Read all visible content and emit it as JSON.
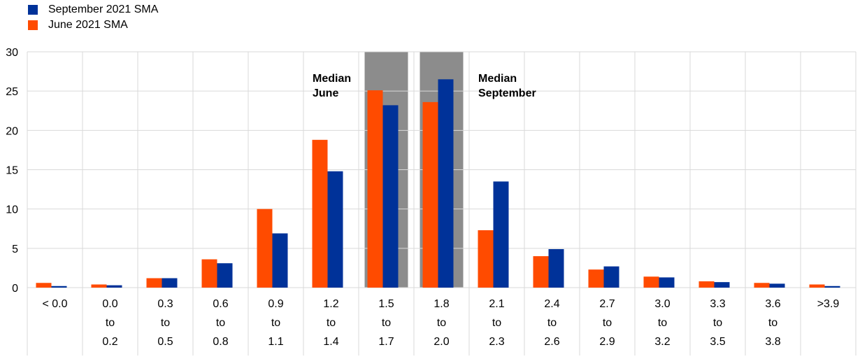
{
  "colors": {
    "september": "#003299",
    "june": "#ff4b00",
    "median_band": "#8c8c8c",
    "grid": "#d9d9d9"
  },
  "chart_data": {
    "type": "bar",
    "categories": [
      [
        "< 0.0"
      ],
      [
        "0.0",
        "to",
        "0.2"
      ],
      [
        "0.3",
        "to",
        "0.5"
      ],
      [
        "0.6",
        "to",
        "0.8"
      ],
      [
        "0.9",
        "to",
        "1.1"
      ],
      [
        "1.2",
        "to",
        "1.4"
      ],
      [
        "1.5",
        "to",
        "1.7"
      ],
      [
        "1.8",
        "to",
        "2.0"
      ],
      [
        "2.1",
        "to",
        "2.3"
      ],
      [
        "2.4",
        "to",
        "2.6"
      ],
      [
        "2.7",
        "to",
        "2.9"
      ],
      [
        "3.0",
        "to",
        "3.2"
      ],
      [
        "3.3",
        "to",
        "3.5"
      ],
      [
        "3.6",
        "to",
        "3.8"
      ],
      [
        ">3.9"
      ]
    ],
    "series": [
      {
        "name": "June 2021 SMA",
        "color": "#ff4b00",
        "values": [
          0.6,
          0.4,
          1.2,
          3.6,
          10.0,
          18.8,
          25.1,
          23.6,
          7.3,
          4.0,
          2.3,
          1.4,
          0.8,
          0.6,
          0.4
        ]
      },
      {
        "name": "September 2021 SMA",
        "color": "#003299",
        "values": [
          0.2,
          0.3,
          1.2,
          3.1,
          6.9,
          14.8,
          23.2,
          26.5,
          13.5,
          4.9,
          2.7,
          1.3,
          0.7,
          0.5,
          0.2
        ]
      }
    ],
    "legend": [
      {
        "name": "September 2021 SMA",
        "color": "#003299"
      },
      {
        "name": "June 2021 SMA",
        "color": "#ff4b00"
      }
    ],
    "ylim": [
      0,
      30
    ],
    "yticks": [
      0,
      5,
      10,
      15,
      20,
      25,
      30
    ],
    "median_bands": [
      6,
      7
    ],
    "annotations": [
      {
        "lines": [
          "Median",
          "June"
        ],
        "category": 5
      },
      {
        "lines": [
          "Median",
          "September"
        ],
        "category": 8
      }
    ],
    "grid": true,
    "legend_position": "top-left"
  }
}
